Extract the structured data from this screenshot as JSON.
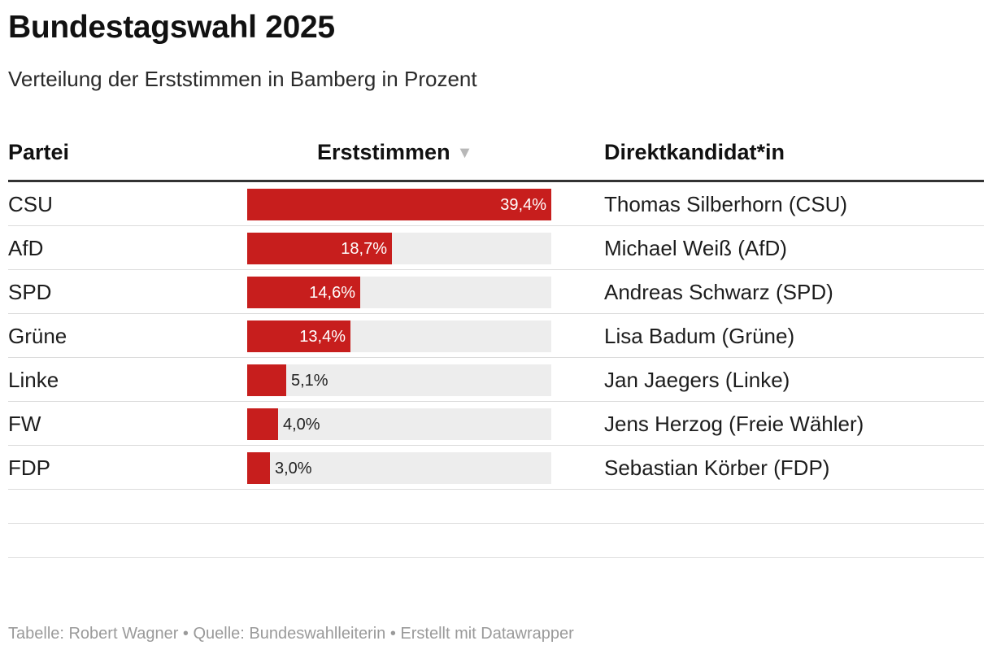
{
  "title": "Bundestagswahl 2025",
  "subtitle": "Verteilung der Erststimmen in Bamberg in Prozent",
  "columns": {
    "party": "Partei",
    "votes": "Erststimmen",
    "candidate": "Direktkandidat*in"
  },
  "sort_icon": "sort-descending-triangle-icon",
  "colors": {
    "bar": "#c71e1d",
    "track": "#ededed"
  },
  "chart_data": {
    "type": "table",
    "title": "Bundestagswahl 2025",
    "subtitle": "Verteilung der Erststimmen in Bamberg in Prozent",
    "columns": [
      "Partei",
      "Erststimmen",
      "Direktkandidat*in"
    ],
    "bar_max": 39.4,
    "rows": [
      {
        "party": "CSU",
        "value": 39.4,
        "label": "39,4%",
        "candidate": "Thomas Silberhorn (CSU)"
      },
      {
        "party": "AfD",
        "value": 18.7,
        "label": "18,7%",
        "candidate": "Michael Weiß (AfD)"
      },
      {
        "party": "SPD",
        "value": 14.6,
        "label": "14,6%",
        "candidate": "Andreas Schwarz (SPD)"
      },
      {
        "party": "Grüne",
        "value": 13.4,
        "label": "13,4%",
        "candidate": "Lisa Badum (Grüne)"
      },
      {
        "party": "Linke",
        "value": 5.1,
        "label": "5,1%",
        "candidate": "Jan Jaegers (Linke)"
      },
      {
        "party": "FW",
        "value": 4.0,
        "label": "4,0%",
        "candidate": "Jens Herzog (Freie Wähler)"
      },
      {
        "party": "FDP",
        "value": 3.0,
        "label": "3,0%",
        "candidate": "Sebastian Körber (FDP)"
      }
    ]
  },
  "footer": "Tabelle: Robert Wagner • Quelle: Bundeswahlleiterin • Erstellt mit Datawrapper"
}
